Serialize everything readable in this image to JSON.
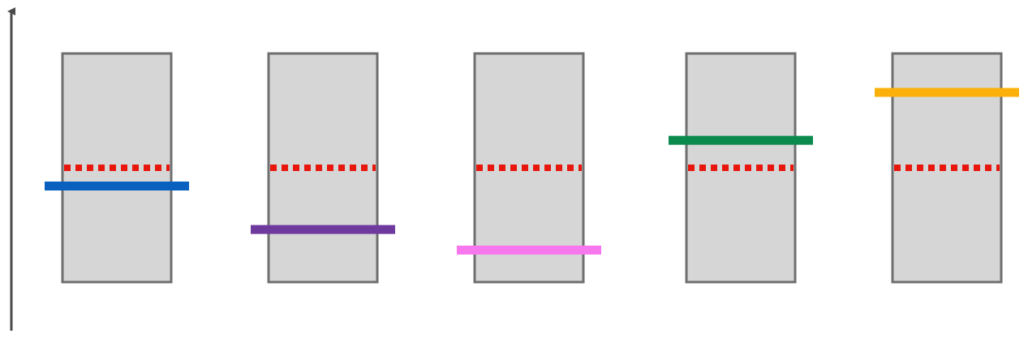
{
  "colors": {
    "axis": "#4a4a4a",
    "box_fill": "#d6d6d6",
    "box_stroke": "#6f6f6f",
    "reference": "#e8160c"
  },
  "reference_level": 0.5,
  "columns": [
    {
      "id": "blue",
      "level": 0.42,
      "color": "#0a60bf"
    },
    {
      "id": "purple",
      "level": 0.23,
      "color": "#6f3a9d"
    },
    {
      "id": "pink",
      "level": 0.14,
      "color": "#f777ef"
    },
    {
      "id": "green",
      "level": 0.62,
      "color": "#0a8a4d"
    },
    {
      "id": "orange",
      "level": 0.83,
      "color": "#fbb10a"
    }
  ]
}
